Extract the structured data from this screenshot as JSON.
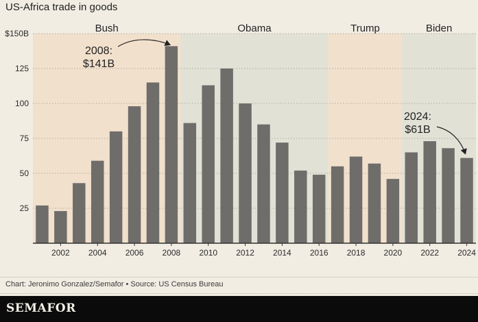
{
  "title": "US-Africa trade in goods",
  "source": "Chart: Jeronimo Gonzalez/Semafor • Source: US Census Bureau",
  "brand": "SEMAFOR",
  "colors": {
    "bar": "#6f6d6a",
    "bush": "#f1e0cc",
    "obama": "#e1e1d6",
    "trump": "#f1e0cc",
    "biden": "#e1e1d6",
    "background": "#f1ede3"
  },
  "chart_data": {
    "type": "bar",
    "title": "US-Africa trade in goods",
    "xlabel": "",
    "ylabel": "",
    "ylim": [
      0,
      150
    ],
    "grid": true,
    "categories": [
      "2001",
      "2002",
      "2003",
      "2004",
      "2005",
      "2006",
      "2007",
      "2008",
      "2009",
      "2010",
      "2011",
      "2012",
      "2013",
      "2014",
      "2015",
      "2016",
      "2017",
      "2018",
      "2019",
      "2020",
      "2021",
      "2022",
      "2023",
      "2024"
    ],
    "values": [
      27,
      23,
      43,
      59,
      80,
      98,
      115,
      141,
      86,
      113,
      125,
      100,
      85,
      72,
      52,
      49,
      55,
      62,
      57,
      46,
      65,
      73,
      68,
      61
    ],
    "y_ticks": [
      {
        "value": 25,
        "label": "25"
      },
      {
        "value": 50,
        "label": "50"
      },
      {
        "value": 75,
        "label": "75"
      },
      {
        "value": 100,
        "label": "100"
      },
      {
        "value": 125,
        "label": "125"
      },
      {
        "value": 150,
        "label": "$150B"
      }
    ],
    "x_tick_labels": [
      "2002",
      "2004",
      "2006",
      "2008",
      "2010",
      "2012",
      "2014",
      "2016",
      "2018",
      "2020",
      "2022",
      "2024"
    ],
    "eras": [
      {
        "name": "Bush",
        "from": "2001",
        "to": "2008",
        "color_key": "bush"
      },
      {
        "name": "Obama",
        "from": "2009",
        "to": "2016",
        "color_key": "obama"
      },
      {
        "name": "Trump",
        "from": "2017",
        "to": "2020",
        "color_key": "trump"
      },
      {
        "name": "Biden",
        "from": "2021",
        "to": "2024",
        "color_key": "biden"
      }
    ],
    "annotations": [
      {
        "year": "2008",
        "lines": [
          "2008:",
          "$141B"
        ]
      },
      {
        "year": "2024",
        "lines": [
          "2024:",
          "$61B"
        ]
      }
    ]
  }
}
